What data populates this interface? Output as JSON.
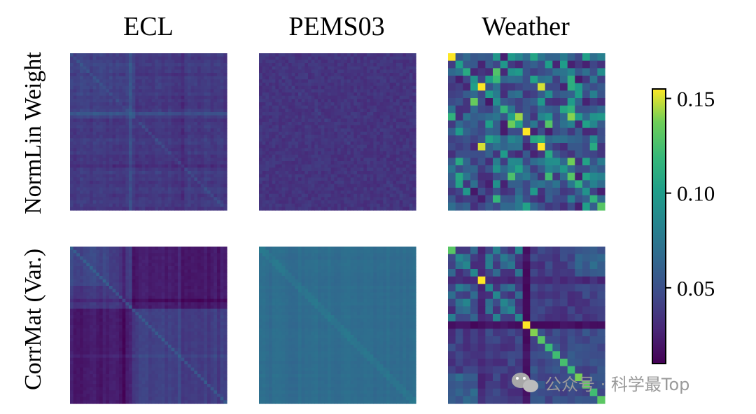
{
  "chart_data": {
    "type": "heatmap",
    "column_titles": [
      "ECL",
      "PEMS03",
      "Weather"
    ],
    "row_labels": [
      "NormLin Weight",
      "CorrMat (Var.)"
    ],
    "colormap": "viridis",
    "colorbar": {
      "range": [
        0.01,
        0.155
      ],
      "ticks": [
        0.05,
        0.1,
        0.15
      ],
      "tick_labels": [
        "0.05",
        "0.10",
        "0.15"
      ]
    },
    "panels": [
      {
        "row": "NormLin Weight",
        "column": "ECL",
        "pattern": "diffuse-cross",
        "base_value": 0.037,
        "cross_index_fraction": 0.38
      },
      {
        "row": "NormLin Weight",
        "column": "PEMS03",
        "pattern": "uniform-noise",
        "base_value": 0.035
      },
      {
        "row": "NormLin Weight",
        "column": "Weather",
        "pattern": "blocky-sparse-diagonal",
        "grid_size": 21,
        "highlight_cells": [
          [
            0,
            0,
            0.155
          ],
          [
            4,
            4,
            0.155
          ],
          [
            10,
            10,
            0.155
          ],
          [
            12,
            12,
            0.155
          ],
          [
            6,
            3,
            0.135
          ],
          [
            3,
            6,
            0.12
          ],
          [
            12,
            4,
            0.15
          ],
          [
            4,
            12,
            0.15
          ],
          [
            16,
            16,
            0.13
          ],
          [
            20,
            20,
            0.13
          ]
        ]
      },
      {
        "row": "CorrMat (Var.)",
        "column": "ECL",
        "pattern": "block-structure",
        "base_value": 0.03,
        "block_split_fraction": 0.4
      },
      {
        "row": "CorrMat (Var.)",
        "column": "PEMS03",
        "pattern": "smooth-with-diagonal",
        "base_value": 0.068
      },
      {
        "row": "CorrMat (Var.)",
        "column": "Weather",
        "pattern": "block-with-strong-diagonal",
        "grid_size": 21,
        "strong_diagonal_from": 10,
        "highlight_cells": [
          [
            0,
            0,
            0.13
          ],
          [
            4,
            4,
            0.155
          ],
          [
            10,
            10,
            0.155
          ],
          [
            11,
            11,
            0.14
          ],
          [
            12,
            12,
            0.13
          ],
          [
            13,
            13,
            0.12
          ]
        ]
      }
    ]
  },
  "watermark": {
    "text": "公众号 · 科学最Top",
    "icon": "wechat-icon"
  }
}
